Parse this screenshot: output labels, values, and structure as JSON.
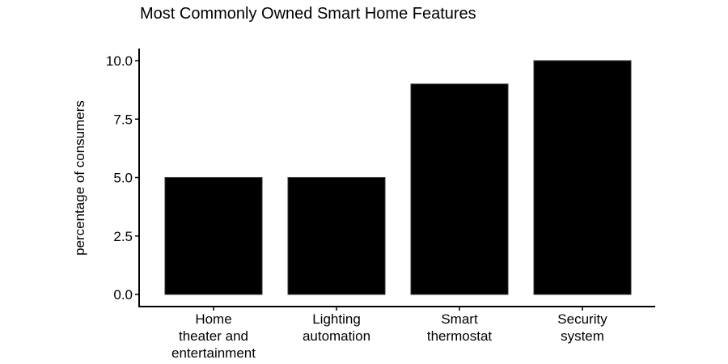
{
  "chart_data": {
    "type": "bar",
    "title": "Most Commonly Owned Smart Home Features",
    "xlabel": "",
    "ylabel": "percentage of consumers",
    "categories": [
      [
        "Home",
        "theater and",
        "entertainment"
      ],
      [
        "Lighting",
        "automation"
      ],
      [
        "Smart",
        "thermostat"
      ],
      [
        "Security",
        "system"
      ]
    ],
    "values": [
      5,
      5,
      9,
      10
    ],
    "ylim": [
      0,
      10.5
    ],
    "yticks": [
      "0.0",
      "2.5",
      "5.0",
      "7.5",
      "10.0"
    ],
    "grid": false,
    "legend": "none",
    "bar_color": "#000000",
    "axis_color": "#000000"
  }
}
